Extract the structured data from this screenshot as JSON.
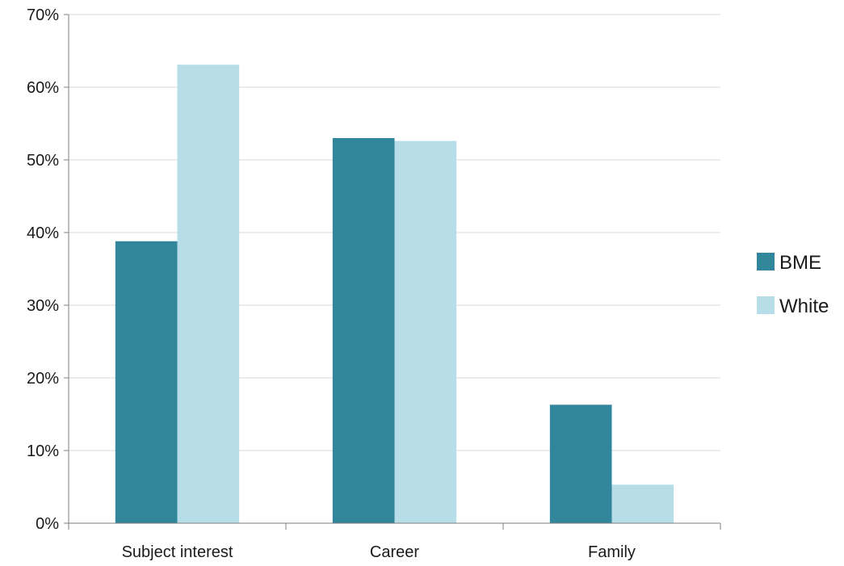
{
  "chart_data": {
    "type": "bar",
    "title": "",
    "xlabel": "",
    "ylabel": "",
    "categories": [
      "Subject interest",
      "Career",
      "Family"
    ],
    "series": [
      {
        "name": "BME",
        "values": [
          38.8,
          53.0,
          16.3
        ],
        "color": "#31869b"
      },
      {
        "name": "White",
        "values": [
          63.1,
          52.6,
          5.3
        ],
        "color": "#b7dee8"
      }
    ],
    "ylim": [
      0,
      70
    ],
    "yticks": [
      0,
      10,
      20,
      30,
      40,
      50,
      60,
      70
    ],
    "ytick_labels": [
      "0%",
      "10%",
      "20%",
      "30%",
      "40%",
      "50%",
      "60%",
      "70%"
    ],
    "grid": true,
    "legend_position": "right"
  }
}
